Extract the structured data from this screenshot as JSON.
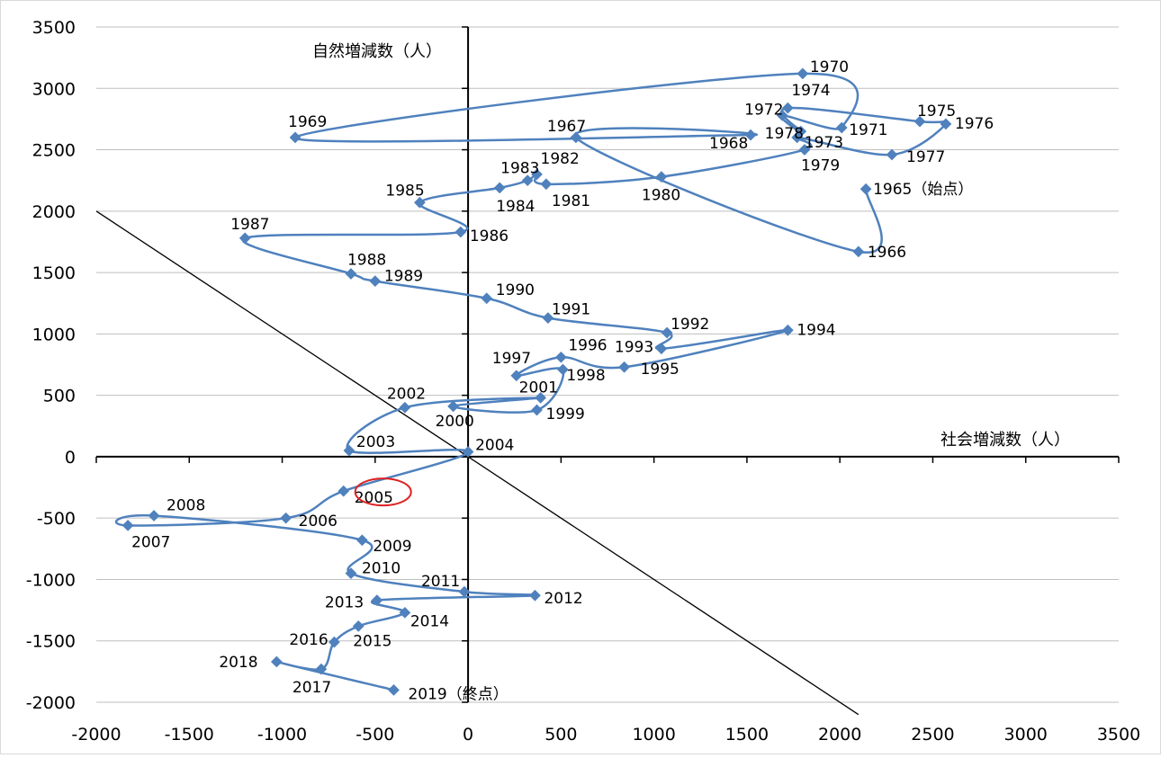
{
  "chart_data": {
    "type": "scatter",
    "title": "",
    "xlabel": "社会増減数（人）",
    "ylabel": "自然増減数（人）",
    "xlim": [
      -2000,
      3500
    ],
    "ylim": [
      -2000,
      3500
    ],
    "xticks": [
      -2000,
      -1500,
      -1000,
      -500,
      0,
      500,
      1000,
      1500,
      2000,
      2500,
      3000,
      3500
    ],
    "yticks": [
      -2000,
      -1500,
      -1000,
      -500,
      0,
      500,
      1000,
      1500,
      2000,
      2500,
      3000,
      3500
    ],
    "grid": "horizontal",
    "legend": "none",
    "series_color": "#4F81BD",
    "reference_line": {
      "from": [
        -2000,
        2000
      ],
      "to": [
        2100,
        -2100
      ],
      "color": "#000000"
    },
    "highlight": {
      "label": "2005",
      "color": "#E02020"
    },
    "points": [
      {
        "label": "1965（始点）",
        "x": 2140,
        "y": 2180
      },
      {
        "label": "1966",
        "x": 2100,
        "y": 1670
      },
      {
        "label": "1967",
        "x": 580,
        "y": 2600
      },
      {
        "label": "1968",
        "x": 1520,
        "y": 2620
      },
      {
        "label": "1969",
        "x": -930,
        "y": 2600
      },
      {
        "label": "1970",
        "x": 1800,
        "y": 3120
      },
      {
        "label": "1971",
        "x": 2010,
        "y": 2680
      },
      {
        "label": "1972",
        "x": 1690,
        "y": 2780
      },
      {
        "label": "1973",
        "x": 1790,
        "y": 2650
      },
      {
        "label": "1974",
        "x": 1720,
        "y": 2840
      },
      {
        "label": "1975",
        "x": 2430,
        "y": 2730
      },
      {
        "label": "1976",
        "x": 2570,
        "y": 2710
      },
      {
        "label": "1977",
        "x": 2280,
        "y": 2460
      },
      {
        "label": "1978",
        "x": 1770,
        "y": 2600
      },
      {
        "label": "1979",
        "x": 1810,
        "y": 2500
      },
      {
        "label": "1980",
        "x": 1040,
        "y": 2280
      },
      {
        "label": "1981",
        "x": 420,
        "y": 2220
      },
      {
        "label": "1982",
        "x": 370,
        "y": 2300
      },
      {
        "label": "1983",
        "x": 320,
        "y": 2250
      },
      {
        "label": "1984",
        "x": 170,
        "y": 2190
      },
      {
        "label": "1985",
        "x": -260,
        "y": 2070
      },
      {
        "label": "1986",
        "x": -40,
        "y": 1830
      },
      {
        "label": "1987",
        "x": -1200,
        "y": 1780
      },
      {
        "label": "1988",
        "x": -630,
        "y": 1490
      },
      {
        "label": "1989",
        "x": -500,
        "y": 1430
      },
      {
        "label": "1990",
        "x": 100,
        "y": 1290
      },
      {
        "label": "1991",
        "x": 430,
        "y": 1130
      },
      {
        "label": "1992",
        "x": 1070,
        "y": 1010
      },
      {
        "label": "1993",
        "x": 1040,
        "y": 880
      },
      {
        "label": "1994",
        "x": 1720,
        "y": 1030
      },
      {
        "label": "1995",
        "x": 840,
        "y": 730
      },
      {
        "label": "1996",
        "x": 500,
        "y": 810
      },
      {
        "label": "1997",
        "x": 260,
        "y": 660
      },
      {
        "label": "1998",
        "x": 510,
        "y": 710
      },
      {
        "label": "1999",
        "x": 370,
        "y": 380
      },
      {
        "label": "2000",
        "x": -80,
        "y": 410
      },
      {
        "label": "2001",
        "x": 390,
        "y": 480
      },
      {
        "label": "2002",
        "x": -340,
        "y": 400
      },
      {
        "label": "2003",
        "x": -640,
        "y": 50
      },
      {
        "label": "2004",
        "x": 0,
        "y": 40
      },
      {
        "label": "2005",
        "x": -670,
        "y": -280
      },
      {
        "label": "2006",
        "x": -980,
        "y": -500
      },
      {
        "label": "2007",
        "x": -1830,
        "y": -560
      },
      {
        "label": "2008",
        "x": -1690,
        "y": -480
      },
      {
        "label": "2009",
        "x": -570,
        "y": -680
      },
      {
        "label": "2010",
        "x": -630,
        "y": -950
      },
      {
        "label": "2011",
        "x": -20,
        "y": -1100
      },
      {
        "label": "2012",
        "x": 360,
        "y": -1130
      },
      {
        "label": "2013",
        "x": -490,
        "y": -1170
      },
      {
        "label": "2014",
        "x": -340,
        "y": -1270
      },
      {
        "label": "2015",
        "x": -590,
        "y": -1380
      },
      {
        "label": "2016",
        "x": -720,
        "y": -1510
      },
      {
        "label": "2017",
        "x": -790,
        "y": -1730
      },
      {
        "label": "2018",
        "x": -1030,
        "y": -1670
      },
      {
        "label": "2019（終点）",
        "x": -400,
        "y": -1900
      }
    ]
  }
}
